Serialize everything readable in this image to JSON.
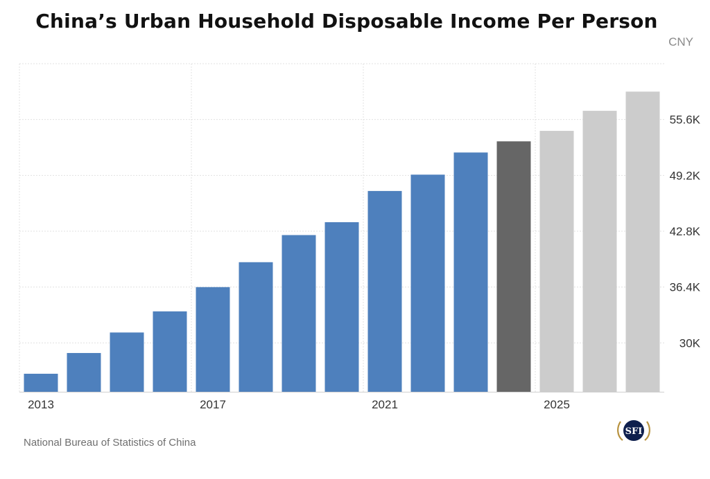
{
  "title": "China’s Urban Household Disposable Income Per Person",
  "unit": "CNY",
  "source": "National Bureau of Statistics of China",
  "logo_text": "SFI",
  "colors": {
    "actual": "#4e80bd",
    "current": "#666666",
    "forecast": "#cccccc",
    "grid": "#e1e1e1",
    "tick_label": "#333333"
  },
  "chart_data": {
    "type": "bar",
    "title": "China’s Urban Household Disposable Income Per Person",
    "xlabel": "",
    "ylabel": "CNY",
    "categories": [
      "2013",
      "2014",
      "2015",
      "2016",
      "2017",
      "2018",
      "2019",
      "2020",
      "2021",
      "2022",
      "2023",
      "2024",
      "2025",
      "2026",
      "2027"
    ],
    "values": [
      26467,
      28844,
      31195,
      33616,
      36396,
      39251,
      42359,
      43834,
      47412,
      49283,
      51821,
      53100,
      54300,
      56600,
      58800
    ],
    "status": [
      "actual",
      "actual",
      "actual",
      "actual",
      "actual",
      "actual",
      "actual",
      "actual",
      "actual",
      "actual",
      "actual",
      "current",
      "forecast",
      "forecast",
      "forecast"
    ],
    "x_tick_labels": [
      "2013",
      "2017",
      "2021",
      "2025"
    ],
    "y_ticks": [
      30000,
      36400,
      42800,
      49200,
      55600
    ],
    "y_tick_labels": [
      "30K",
      "36.4K",
      "42.8K",
      "49.2K",
      "55.6K"
    ],
    "ylim": [
      24400,
      62000
    ],
    "grid": true,
    "legend": "none"
  }
}
